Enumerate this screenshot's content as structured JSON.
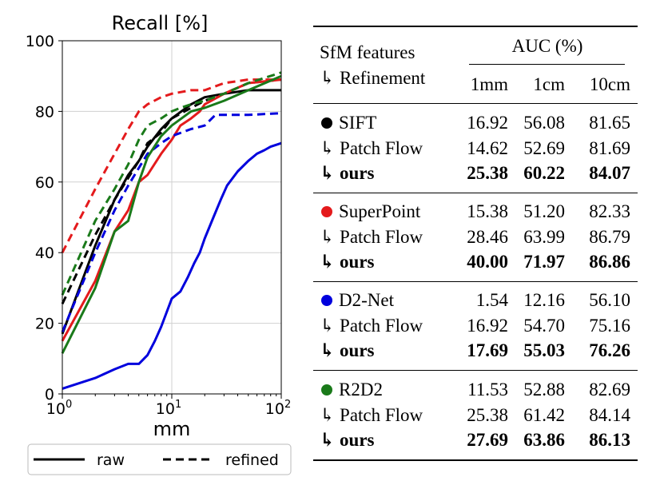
{
  "chart_data": {
    "type": "line",
    "title": "Recall [%]",
    "xlabel": "mm",
    "ylabel": "",
    "xscale": "log",
    "xlim": [
      1,
      100
    ],
    "ylim": [
      0,
      100
    ],
    "x_ticks": [
      {
        "base": "10",
        "exp": "0"
      },
      {
        "base": "10",
        "exp": "1"
      },
      {
        "base": "10",
        "exp": "2"
      }
    ],
    "y_ticks": [
      "0",
      "20",
      "40",
      "60",
      "80",
      "100"
    ],
    "grid": true,
    "legend": {
      "position": "bottom-outside",
      "entries": [
        {
          "label": "raw",
          "style": "solid"
        },
        {
          "label": "refined",
          "style": "dashed"
        }
      ]
    },
    "series": [
      {
        "feature": "SIFT",
        "variant": "raw",
        "color": "#000000",
        "dash": false,
        "points": [
          [
            1,
            17
          ],
          [
            2,
            42
          ],
          [
            3,
            55
          ],
          [
            4,
            62
          ],
          [
            5,
            66
          ],
          [
            6,
            70
          ],
          [
            8,
            75
          ],
          [
            10,
            78
          ],
          [
            15,
            82
          ],
          [
            20,
            84
          ],
          [
            30,
            85
          ],
          [
            50,
            86
          ],
          [
            100,
            86
          ]
        ]
      },
      {
        "feature": "SIFT",
        "variant": "refined",
        "color": "#000000",
        "dash": true,
        "points": [
          [
            1,
            25.5
          ],
          [
            2,
            45
          ],
          [
            3,
            55
          ],
          [
            5,
            66
          ],
          [
            6,
            71
          ],
          [
            8,
            74
          ],
          [
            10,
            78
          ],
          [
            15,
            81
          ],
          [
            20,
            83
          ],
          [
            30,
            85
          ],
          [
            50,
            88
          ],
          [
            100,
            89
          ]
        ]
      },
      {
        "feature": "SuperPoint",
        "variant": "raw",
        "color": "#e41a1c",
        "dash": false,
        "points": [
          [
            1,
            15
          ],
          [
            2,
            32
          ],
          [
            3,
            46
          ],
          [
            4,
            52
          ],
          [
            5,
            60
          ],
          [
            6,
            62
          ],
          [
            8,
            68
          ],
          [
            10,
            72
          ],
          [
            12,
            76
          ],
          [
            15,
            78
          ],
          [
            18,
            80
          ],
          [
            20,
            82
          ],
          [
            30,
            85
          ],
          [
            50,
            88
          ],
          [
            100,
            89
          ]
        ]
      },
      {
        "feature": "SuperPoint",
        "variant": "refined",
        "color": "#e41a1c",
        "dash": true,
        "points": [
          [
            1,
            40
          ],
          [
            2,
            58
          ],
          [
            3,
            68
          ],
          [
            4,
            75
          ],
          [
            5,
            80
          ],
          [
            6,
            82
          ],
          [
            8,
            84
          ],
          [
            10,
            85
          ],
          [
            15,
            86
          ],
          [
            20,
            86
          ],
          [
            30,
            88
          ],
          [
            50,
            89
          ],
          [
            100,
            89
          ]
        ]
      },
      {
        "feature": "D2-Net",
        "variant": "raw",
        "color": "#0000dd",
        "dash": false,
        "points": [
          [
            1,
            1.5
          ],
          [
            2,
            4.5
          ],
          [
            3,
            7
          ],
          [
            4,
            8.5
          ],
          [
            5,
            8.5
          ],
          [
            6,
            11
          ],
          [
            7,
            15
          ],
          [
            8,
            19
          ],
          [
            10,
            27
          ],
          [
            12,
            29
          ],
          [
            14,
            33
          ],
          [
            16,
            37
          ],
          [
            18,
            40
          ],
          [
            20,
            44
          ],
          [
            24,
            50
          ],
          [
            28,
            55
          ],
          [
            32,
            59
          ],
          [
            40,
            63
          ],
          [
            50,
            66
          ],
          [
            60,
            68
          ],
          [
            70,
            69
          ],
          [
            80,
            70
          ],
          [
            100,
            71
          ]
        ]
      },
      {
        "feature": "D2-Net",
        "variant": "refined",
        "color": "#0000dd",
        "dash": true,
        "points": [
          [
            1,
            17.5
          ],
          [
            2,
            40
          ],
          [
            3,
            52
          ],
          [
            4,
            59
          ],
          [
            5,
            64
          ],
          [
            6,
            68
          ],
          [
            8,
            71
          ],
          [
            10,
            73
          ],
          [
            15,
            75
          ],
          [
            20,
            76
          ],
          [
            25,
            79
          ],
          [
            30,
            79
          ],
          [
            50,
            79
          ],
          [
            100,
            79.5
          ]
        ]
      },
      {
        "feature": "R2D2",
        "variant": "raw",
        "color": "#1a7a1a",
        "dash": false,
        "points": [
          [
            1,
            11.5
          ],
          [
            2,
            30
          ],
          [
            3,
            46
          ],
          [
            4,
            49
          ],
          [
            5,
            60
          ],
          [
            6,
            67
          ],
          [
            8,
            73
          ],
          [
            10,
            76
          ],
          [
            15,
            80
          ],
          [
            20,
            81
          ],
          [
            30,
            83
          ],
          [
            50,
            86
          ],
          [
            100,
            90
          ]
        ]
      },
      {
        "feature": "R2D2",
        "variant": "refined",
        "color": "#1a7a1a",
        "dash": true,
        "points": [
          [
            1,
            28
          ],
          [
            2,
            49
          ],
          [
            3,
            58
          ],
          [
            4,
            65
          ],
          [
            5,
            72
          ],
          [
            6,
            76
          ],
          [
            8,
            78
          ],
          [
            10,
            80
          ],
          [
            12,
            81
          ],
          [
            15,
            82
          ],
          [
            20,
            83
          ],
          [
            30,
            85
          ],
          [
            50,
            88
          ],
          [
            100,
            91
          ]
        ]
      }
    ]
  },
  "table": {
    "header": {
      "features_label": "SfM features",
      "refinement_label": "↳ Refinement",
      "auc_label": "AUC (%)",
      "columns": [
        "1mm",
        "1cm",
        "10cm"
      ]
    },
    "groups": [
      {
        "feature": "SIFT",
        "dot_color": "#000000",
        "rows": [
          {
            "label": "SIFT",
            "values": [
              "16.92",
              "56.08",
              "81.65"
            ],
            "bold": false
          },
          {
            "label": "↳ Patch Flow",
            "values": [
              "14.62",
              "52.69",
              "81.69"
            ],
            "bold": false
          },
          {
            "label": "↳ ours",
            "values": [
              "25.38",
              "60.22",
              "84.07"
            ],
            "bold": true
          }
        ]
      },
      {
        "feature": "SuperPoint",
        "dot_color": "#e41a1c",
        "rows": [
          {
            "label": "SuperPoint",
            "values": [
              "15.38",
              "51.20",
              "82.33"
            ],
            "bold": false
          },
          {
            "label": "↳ Patch Flow",
            "values": [
              "28.46",
              "63.99",
              "86.79"
            ],
            "bold": false
          },
          {
            "label": "↳ ours",
            "values": [
              "40.00",
              "71.97",
              "86.86"
            ],
            "bold": true
          }
        ]
      },
      {
        "feature": "D2-Net",
        "dot_color": "#0000dd",
        "rows": [
          {
            "label": "D2-Net",
            "values": [
              "1.54",
              "12.16",
              "56.10"
            ],
            "bold": false
          },
          {
            "label": "↳ Patch Flow",
            "values": [
              "16.92",
              "54.70",
              "75.16"
            ],
            "bold": false
          },
          {
            "label": "↳ ours",
            "values": [
              "17.69",
              "55.03",
              "76.26"
            ],
            "bold": true
          }
        ]
      },
      {
        "feature": "R2D2",
        "dot_color": "#1a7a1a",
        "rows": [
          {
            "label": "R2D2",
            "values": [
              "11.53",
              "52.88",
              "82.69"
            ],
            "bold": false
          },
          {
            "label": "↳ Patch Flow",
            "values": [
              "25.38",
              "61.42",
              "84.14"
            ],
            "bold": false
          },
          {
            "label": "↳ ours",
            "values": [
              "27.69",
              "63.86",
              "86.13"
            ],
            "bold": true
          }
        ]
      }
    ]
  }
}
